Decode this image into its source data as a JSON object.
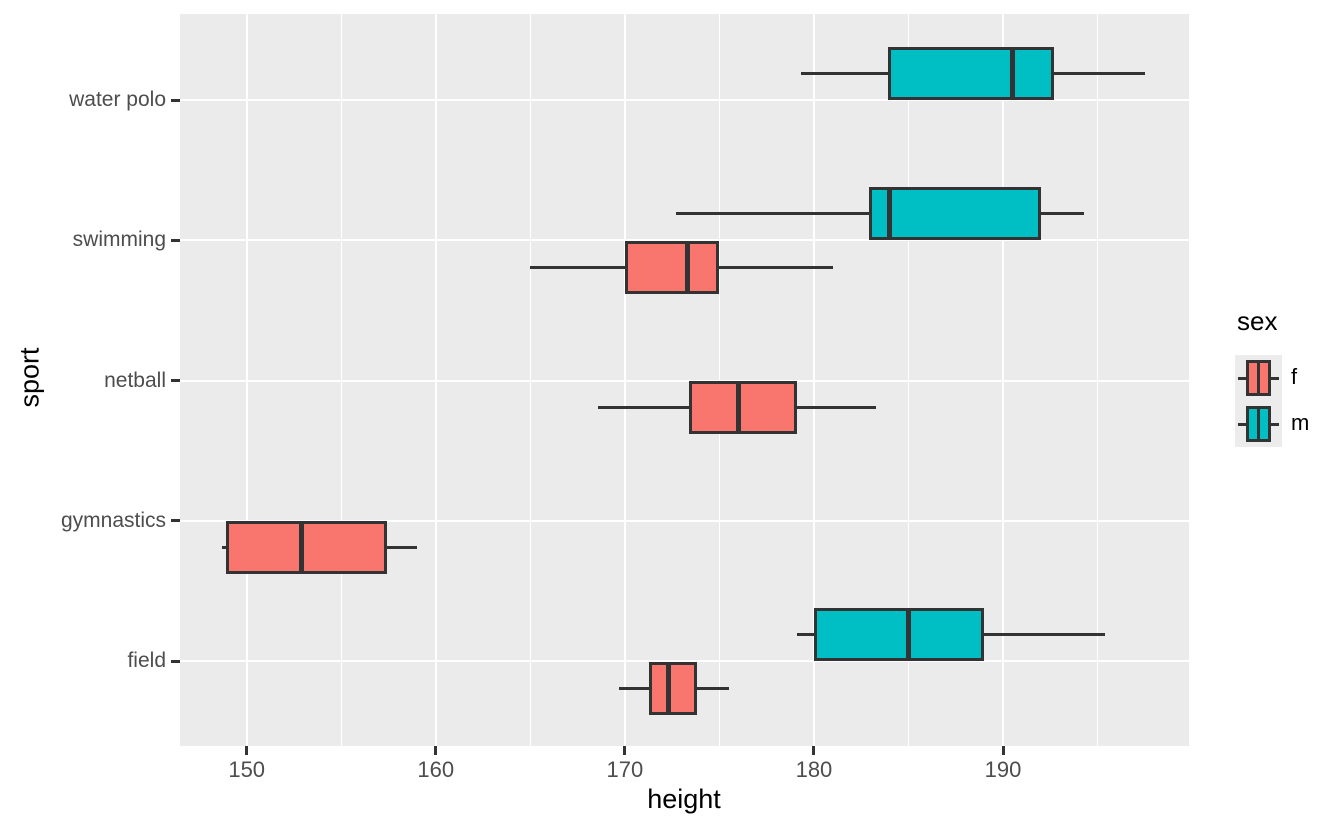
{
  "chart_data": {
    "type": "boxplot",
    "orientation": "horizontal",
    "title": "",
    "xlabel": "height",
    "ylabel": "sport",
    "categories": [
      "water polo",
      "swimming",
      "netball",
      "gymnastics",
      "field"
    ],
    "x_axis": {
      "major_ticks": [
        150,
        160,
        170,
        180,
        190
      ],
      "minor_gridlines": [
        155,
        165,
        175,
        185,
        195
      ],
      "range": [
        146.5,
        199.8
      ]
    },
    "legend": {
      "title": "sex",
      "entries": [
        {
          "label": "f",
          "color": "#F8766D"
        },
        {
          "label": "m",
          "color": "#00BFC4"
        }
      ]
    },
    "series": [
      {
        "sport": "water polo",
        "sex": "m",
        "whisker_low": 179.3,
        "q1": 183.9,
        "median": 190.5,
        "q3": 192.7,
        "whisker_high": 197.5
      },
      {
        "sport": "swimming",
        "sex": "m",
        "whisker_low": 172.7,
        "q1": 182.9,
        "median": 184.0,
        "q3": 192.0,
        "whisker_high": 194.3
      },
      {
        "sport": "swimming",
        "sex": "f",
        "whisker_low": 165.0,
        "q1": 170.0,
        "median": 173.3,
        "q3": 175.0,
        "whisker_high": 181.0
      },
      {
        "sport": "netball",
        "sex": "f",
        "whisker_low": 168.6,
        "q1": 173.4,
        "median": 176.0,
        "q3": 179.1,
        "whisker_high": 183.3
      },
      {
        "sport": "gymnastics",
        "sex": "f",
        "whisker_low": 148.7,
        "q1": 148.9,
        "median": 152.9,
        "q3": 157.4,
        "whisker_high": 159.0
      },
      {
        "sport": "field",
        "sex": "m",
        "whisker_low": 179.1,
        "q1": 180.0,
        "median": 185.0,
        "q3": 189.0,
        "whisker_high": 195.4
      },
      {
        "sport": "field",
        "sex": "f",
        "whisker_low": 169.7,
        "q1": 171.3,
        "median": 172.3,
        "q3": 173.8,
        "whisker_high": 175.5
      }
    ]
  },
  "colors": {
    "panel_bg": "#EBEBEB",
    "grid": "#FFFFFF",
    "box_border": "#333333",
    "median": "#333333",
    "whisker": "#333333",
    "tick_mark": "#333333",
    "tick_text": "#4D4D4D",
    "axis_title": "#000000",
    "legend_key_bg": "#ECECEC",
    "fill_f": "#F8766D",
    "fill_m": "#00BFC4"
  }
}
